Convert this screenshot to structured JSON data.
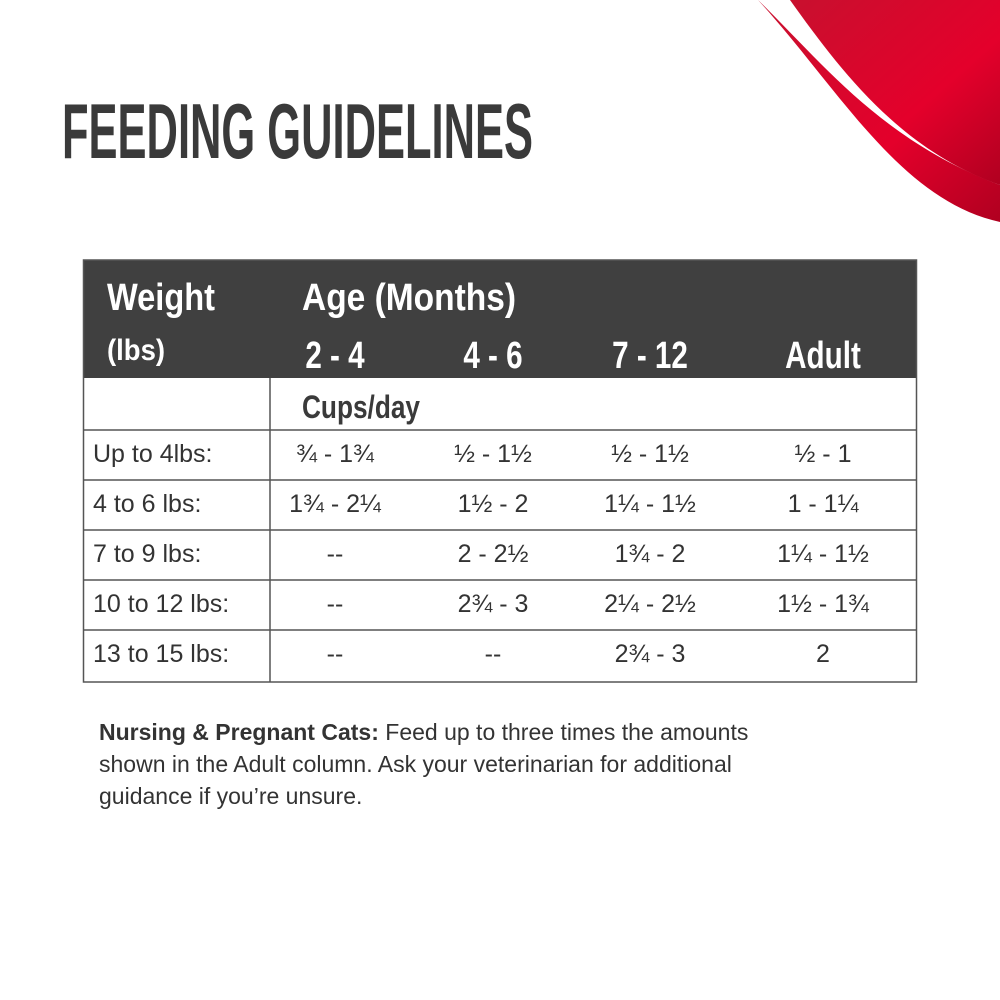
{
  "title": "FEEDING GUIDELINES",
  "table": {
    "weight_label": "Weight",
    "weight_unit": "(lbs)",
    "age_label": "Age (Months)",
    "columns": [
      "2 - 4",
      "4 - 6",
      "7 - 12",
      "Adult"
    ],
    "unit_label": "Cups/day",
    "rows": [
      [
        "Up to 4lbs:",
        "¾ - 1¾",
        "½ - 1½",
        "½ - 1½",
        "½ - 1"
      ],
      [
        "4 to 6 lbs:",
        "1¾ - 2¼",
        "1½ - 2",
        "1¼ - 1½",
        "1 - 1¼"
      ],
      [
        "7 to 9 lbs:",
        "--",
        "2 - 2½",
        "1¾ - 2",
        "1¼ - 1½"
      ],
      [
        "10 to 12 lbs:",
        "--",
        "2¾ - 3",
        "2¼ - 2½",
        "1½ - 1¾"
      ],
      [
        "13 to 15 lbs:",
        "--",
        "--",
        "2¾ - 3",
        "2"
      ]
    ]
  },
  "note": {
    "lead": "Nursing & Pregnant Cats:",
    "lines": [
      " Feed up to three times the amounts",
      "shown in the Adult column. Ask your veterinarian for additional",
      "guidance if you’re unsure."
    ]
  }
}
